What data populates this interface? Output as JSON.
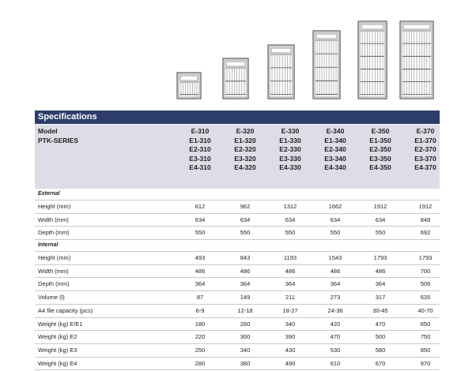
{
  "title": "Specifications",
  "model_labels": [
    "Model",
    "PTK-SERIES"
  ],
  "models": [
    [
      "E-310",
      "E1-310",
      "E2-310",
      "E3-310",
      "E4-310"
    ],
    [
      "E-320",
      "E1-320",
      "E2-320",
      "E3-320",
      "E4-320"
    ],
    [
      "E-330",
      "E1-330",
      "E2-330",
      "E3-330",
      "E4-330"
    ],
    [
      "E-340",
      "E1-340",
      "E2-340",
      "E3-340",
      "E4-340"
    ],
    [
      "E-350",
      "E1-350",
      "E2-350",
      "E3-350",
      "E4-350"
    ],
    [
      "E-370",
      "E1-370",
      "E2-370",
      "E3-370",
      "E4-370"
    ]
  ],
  "sections": [
    {
      "name": "External",
      "rows": [
        {
          "label": "Height (mm)",
          "values": [
            "612",
            "962",
            "1312",
            "1662",
            "1912",
            "1912"
          ]
        },
        {
          "label": "Width (mm)",
          "values": [
            "634",
            "634",
            "634",
            "634",
            "634",
            "848"
          ]
        },
        {
          "label": "Depth (mm)",
          "values": [
            "550",
            "550",
            "550",
            "550",
            "550",
            "692"
          ]
        }
      ]
    },
    {
      "name": "Internal",
      "rows": [
        {
          "label": "Height (mm)",
          "values": [
            "493",
            "843",
            "1193",
            "1543",
            "1793",
            "1793"
          ]
        },
        {
          "label": "Width (mm)",
          "values": [
            "486",
            "486",
            "486",
            "486",
            "486",
            "700"
          ]
        },
        {
          "label": "Depth (mm)",
          "values": [
            "364",
            "364",
            "364",
            "364",
            "364",
            "506"
          ]
        },
        {
          "label": "Volume (l)",
          "values": [
            "87",
            "149",
            "211",
            "273",
            "317",
            "635"
          ]
        },
        {
          "label": "A4 file capacity (pcs)",
          "values": [
            "6-9",
            "12-18",
            "18-27",
            "24-36",
            "30-45",
            "40-70"
          ]
        },
        {
          "label": "Weight (kg) E/E1",
          "values": [
            "180",
            "260",
            "340",
            "420",
            "470",
            "650"
          ]
        },
        {
          "label": "Weight (kg) E2",
          "values": [
            "220",
            "300",
            "390",
            "470",
            "500",
            "750"
          ]
        },
        {
          "label": "Weight (kg) E3",
          "values": [
            "250",
            "340",
            "430",
            "530",
            "580",
            "850"
          ]
        },
        {
          "label": "Weight (kg) E4",
          "values": [
            "280",
            "380",
            "490",
            "610",
            "670",
            "970"
          ]
        }
      ]
    }
  ],
  "colors": {
    "header": "#2d3d6b",
    "model_band": "#dcdde6"
  },
  "icon": "filing-cabinet-icon"
}
